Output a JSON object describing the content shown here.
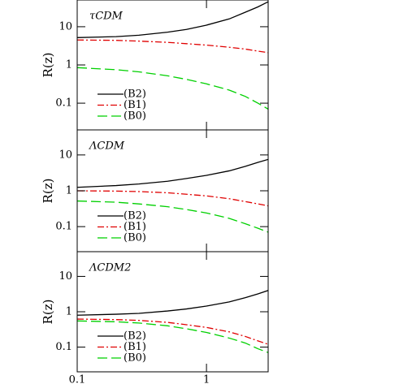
{
  "chart_data": [
    {
      "type": "line",
      "annotation": "τCDM",
      "ylabel": "R(z)",
      "x": [
        0.1,
        0.2,
        0.3,
        0.5,
        0.7,
        1,
        1.5,
        2,
        2.5,
        3
      ],
      "xlim": [
        0.1,
        3
      ],
      "xticks": [
        0.1,
        1
      ],
      "ylim": [
        0.02,
        50
      ],
      "yticks": [
        10,
        1,
        0.1
      ],
      "log_x": true,
      "log_y": true,
      "series": [
        {
          "name": "(B2)",
          "color": "#000000",
          "style": "solid",
          "values": [
            5.2,
            5.5,
            6,
            7.2,
            8.5,
            11,
            16,
            24,
            33,
            45
          ]
        },
        {
          "name": "(B1)",
          "color": "#e00000",
          "style": "dash-dot",
          "values": [
            4.5,
            4.4,
            4.2,
            3.9,
            3.6,
            3.3,
            2.9,
            2.6,
            2.3,
            2.1
          ]
        },
        {
          "name": "(B0)",
          "color": "#00d000",
          "style": "dash",
          "values": [
            0.85,
            0.75,
            0.66,
            0.52,
            0.42,
            0.32,
            0.22,
            0.15,
            0.1,
            0.07
          ]
        }
      ]
    },
    {
      "type": "line",
      "annotation": "ΛCDM",
      "ylabel": "R(z)",
      "x": [
        0.1,
        0.2,
        0.3,
        0.5,
        0.7,
        1,
        1.5,
        2,
        2.5,
        3
      ],
      "xlim": [
        0.1,
        3
      ],
      "xticks": [
        0.1,
        1
      ],
      "ylim": [
        0.02,
        50
      ],
      "yticks": [
        10,
        1,
        0.1
      ],
      "log_x": true,
      "log_y": true,
      "series": [
        {
          "name": "(B2)",
          "color": "#000000",
          "style": "solid",
          "values": [
            1.25,
            1.4,
            1.55,
            1.85,
            2.2,
            2.7,
            3.6,
            4.8,
            6.2,
            7.5
          ]
        },
        {
          "name": "(B1)",
          "color": "#e00000",
          "style": "dash-dot",
          "values": [
            1.0,
            0.98,
            0.95,
            0.88,
            0.8,
            0.72,
            0.6,
            0.5,
            0.43,
            0.38
          ]
        },
        {
          "name": "(B0)",
          "color": "#00d000",
          "style": "dash",
          "values": [
            0.52,
            0.48,
            0.43,
            0.36,
            0.3,
            0.24,
            0.17,
            0.12,
            0.09,
            0.07
          ]
        }
      ]
    },
    {
      "type": "line",
      "annotation": "ΛCDM2",
      "ylabel": "R(z)",
      "x": [
        0.1,
        0.2,
        0.3,
        0.5,
        0.7,
        1,
        1.5,
        2,
        2.5,
        3
      ],
      "xlim": [
        0.1,
        3
      ],
      "xticks": [
        0.1,
        1
      ],
      "ylim": [
        0.02,
        50
      ],
      "yticks": [
        10,
        1,
        0.1
      ],
      "log_x": true,
      "log_y": true,
      "series": [
        {
          "name": "(B2)",
          "color": "#000000",
          "style": "solid",
          "values": [
            0.8,
            0.85,
            0.9,
            1.05,
            1.2,
            1.45,
            1.9,
            2.5,
            3.2,
            4
          ]
        },
        {
          "name": "(B1)",
          "color": "#e00000",
          "style": "dash-dot",
          "values": [
            0.62,
            0.6,
            0.57,
            0.5,
            0.43,
            0.36,
            0.27,
            0.2,
            0.15,
            0.12
          ]
        },
        {
          "name": "(B0)",
          "color": "#00d000",
          "style": "dash",
          "values": [
            0.55,
            0.52,
            0.48,
            0.4,
            0.33,
            0.26,
            0.18,
            0.13,
            0.09,
            0.07
          ]
        }
      ]
    }
  ]
}
